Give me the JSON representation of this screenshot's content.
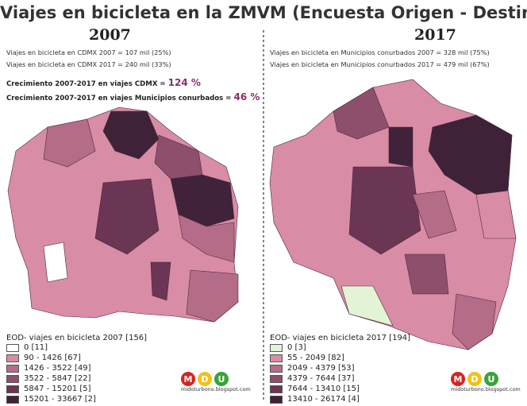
{
  "title": "Viajes en bicicleta en la ZMVM (Encuesta Origen - Destino)",
  "left": {
    "year": "2007",
    "notes": [
      "Viajes en bicicleta en CDMX 2007 = 107 mil (25%)",
      "Viajes en bicicleta en CDMX 2017 = 240 mil (33%)"
    ],
    "growth": [
      {
        "text": "Crecimiento  2007-2017 en viajes  CDMX = ",
        "value": "124 %"
      },
      {
        "text": "Crecimiento 2007-2017 en viajes  Municipios conurbados = ",
        "value": "46 %"
      }
    ],
    "legend": {
      "title": "EOD- viajes en bicicleta 2007 [156]",
      "items": [
        "0 [11]",
        "90 - 1426 [67]",
        "1426 - 3522 [49]",
        "3522 - 5847 [22]",
        "5847 - 15201 [5]",
        "15201 - 33667 [2]"
      ]
    },
    "logo": {
      "letters": [
        "M",
        "D",
        "U"
      ],
      "url": "midoturbono.blogspot.com"
    }
  },
  "right": {
    "year": "2017",
    "notes": [
      "Viajes en bicicleta en Municipios conurbados 2007 = 328 mil (75%)",
      "Viajes en bicicleta en Municipios conurbados 2017 = 479 mil (67%)"
    ],
    "legend": {
      "title": "EOD- viajes en bicicleta 2017 [194]",
      "items": [
        "0 [3]",
        "55 - 2049 [82]",
        "2049 - 4379 [53]",
        "4379 - 7644 [37]",
        "7644 - 13410 [15]",
        "13410 - 26174 [4]"
      ]
    },
    "logo": {
      "letters": [
        "M",
        "D",
        "U"
      ],
      "url": "midoturbono.blogspot.com"
    }
  }
}
